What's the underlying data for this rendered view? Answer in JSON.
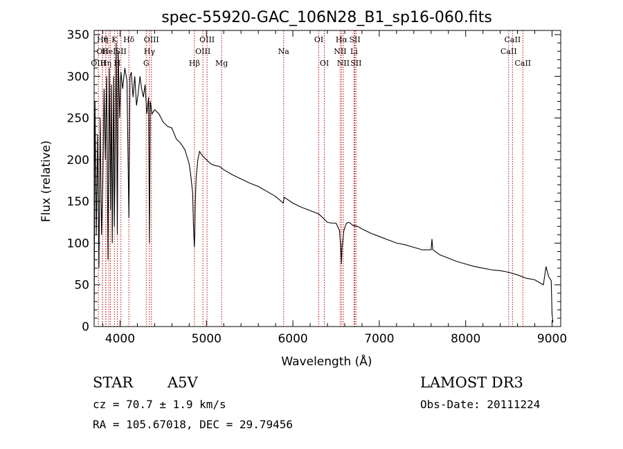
{
  "chart_data": {
    "type": "line",
    "title": "spec-55920-GAC_106N28_B1_sp16-060.fits",
    "xlabel": "Wavelength (Å)",
    "ylabel": "Flux (relative)",
    "xlim": [
      3700,
      9100
    ],
    "ylim": [
      0,
      355
    ],
    "xticks": [
      4000,
      5000,
      6000,
      7000,
      8000,
      9000
    ],
    "xtick_labels": [
      "4000",
      "5000",
      "6000",
      "7000",
      "8000",
      "9000"
    ],
    "yticks": [
      0,
      50,
      100,
      150,
      200,
      250,
      300,
      350
    ],
    "ytick_labels": [
      "0",
      "50",
      "100",
      "150",
      "200",
      "250",
      "300",
      "350"
    ],
    "series": [
      {
        "name": "flux",
        "x": [
          3700,
          3710,
          3725,
          3740,
          3755,
          3770,
          3785,
          3800,
          3815,
          3830,
          3845,
          3860,
          3875,
          3890,
          3900,
          3910,
          3925,
          3933,
          3940,
          3955,
          3968,
          3980,
          3995,
          4010,
          4030,
          4055,
          4080,
          4102,
          4115,
          4130,
          4150,
          4170,
          4190,
          4210,
          4230,
          4250,
          4270,
          4290,
          4310,
          4330,
          4340,
          4350,
          4370,
          4400,
          4450,
          4500,
          4550,
          4600,
          4650,
          4700,
          4750,
          4800,
          4820,
          4840,
          4850,
          4860,
          4865,
          4870,
          4880,
          4900,
          4920,
          4950,
          5000,
          5050,
          5100,
          5150,
          5200,
          5300,
          5400,
          5500,
          5600,
          5700,
          5800,
          5890,
          5900,
          6000,
          6100,
          6200,
          6300,
          6400,
          6450,
          6500,
          6540,
          6555,
          6563,
          6570,
          6590,
          6620,
          6650,
          6700,
          6750,
          6800,
          6900,
          7000,
          7100,
          7200,
          7300,
          7400,
          7500,
          7600,
          7610,
          7620,
          7700,
          7800,
          7900,
          8000,
          8100,
          8200,
          8300,
          8400,
          8500,
          8600,
          8700,
          8800,
          8850,
          8900,
          8930,
          8960,
          8990,
          9000,
          9010
        ],
        "y": [
          15,
          270,
          110,
          230,
          70,
          250,
          110,
          170,
          285,
          200,
          300,
          80,
          310,
          140,
          290,
          100,
          300,
          120,
          175,
          340,
          110,
          330,
          250,
          305,
          285,
          310,
          295,
          130,
          300,
          305,
          275,
          300,
          265,
          280,
          300,
          285,
          275,
          290,
          255,
          275,
          100,
          270,
          255,
          260,
          255,
          245,
          240,
          238,
          225,
          220,
          212,
          195,
          180,
          160,
          120,
          95,
          110,
          145,
          178,
          200,
          210,
          205,
          200,
          195,
          193,
          192,
          188,
          182,
          177,
          172,
          168,
          162,
          156,
          148,
          155,
          148,
          143,
          139,
          135,
          125,
          124,
          124,
          115,
          95,
          75,
          95,
          115,
          124,
          125,
          121,
          120,
          117,
          112,
          108,
          104,
          100,
          98,
          95,
          92,
          92,
          105,
          92,
          86,
          82,
          78,
          75,
          72,
          70,
          68,
          67,
          65,
          62,
          58,
          56,
          53,
          50,
          72,
          60,
          55,
          15,
          5
        ]
      }
    ]
  },
  "line_labels": [
    {
      "wl": 3750,
      "row": 3,
      "text": "OIII"
    },
    {
      "wl": 3797,
      "row": 1,
      "text": "Hθ"
    },
    {
      "wl": 3797,
      "row": 2,
      "text": "OII"
    },
    {
      "wl": 3835,
      "row": 1,
      "text": "η"
    },
    {
      "wl": 3835,
      "row": 3,
      "text": "Hη"
    },
    {
      "wl": 3870,
      "row": 2,
      "text": "HeI"
    },
    {
      "wl": 3889,
      "row": 3,
      "text": ""
    },
    {
      "wl": 3934,
      "row": 1,
      "text": "K"
    },
    {
      "wl": 3968,
      "row": 3,
      "text": "H"
    },
    {
      "wl": 4010,
      "row": 2,
      "text": "SII"
    },
    {
      "wl": 4102,
      "row": 1,
      "text": "Hδ"
    },
    {
      "wl": 4303,
      "row": 3,
      "text": "G"
    },
    {
      "wl": 4340,
      "row": 2,
      "text": "Hγ"
    },
    {
      "wl": 4363,
      "row": 1,
      "text": "OIII"
    },
    {
      "wl": 4861,
      "row": 3,
      "text": "Hβ"
    },
    {
      "wl": 4959,
      "row": 2,
      "text": "OIII"
    },
    {
      "wl": 5007,
      "row": 1,
      "text": "OIII"
    },
    {
      "wl": 5175,
      "row": 3,
      "text": "Mg"
    },
    {
      "wl": 5893,
      "row": 2,
      "text": "Na"
    },
    {
      "wl": 6300,
      "row": 1,
      "text": "OI"
    },
    {
      "wl": 6364,
      "row": 3,
      "text": "OI"
    },
    {
      "wl": 6548,
      "row": 2,
      "text": "NII"
    },
    {
      "wl": 6563,
      "row": 1,
      "text": "Hα"
    },
    {
      "wl": 6584,
      "row": 3,
      "text": "NII"
    },
    {
      "wl": 6708,
      "row": 2,
      "text": "Li"
    },
    {
      "wl": 6717,
      "row": 1,
      "text": "SII"
    },
    {
      "wl": 6731,
      "row": 3,
      "text": "SII"
    },
    {
      "wl": 8498,
      "row": 2,
      "text": "CaII"
    },
    {
      "wl": 8542,
      "row": 1,
      "text": "CaII"
    },
    {
      "wl": 8662,
      "row": 3,
      "text": "CaII"
    }
  ],
  "info": {
    "class": "STAR",
    "subclass": "A5V",
    "survey": "LAMOST DR3",
    "cz": "cz = 70.7 ± 1.9 km/s",
    "obs_date": "Obs-Date: 20111224",
    "coords": "RA = 105.67018, DEC =  29.79456"
  }
}
